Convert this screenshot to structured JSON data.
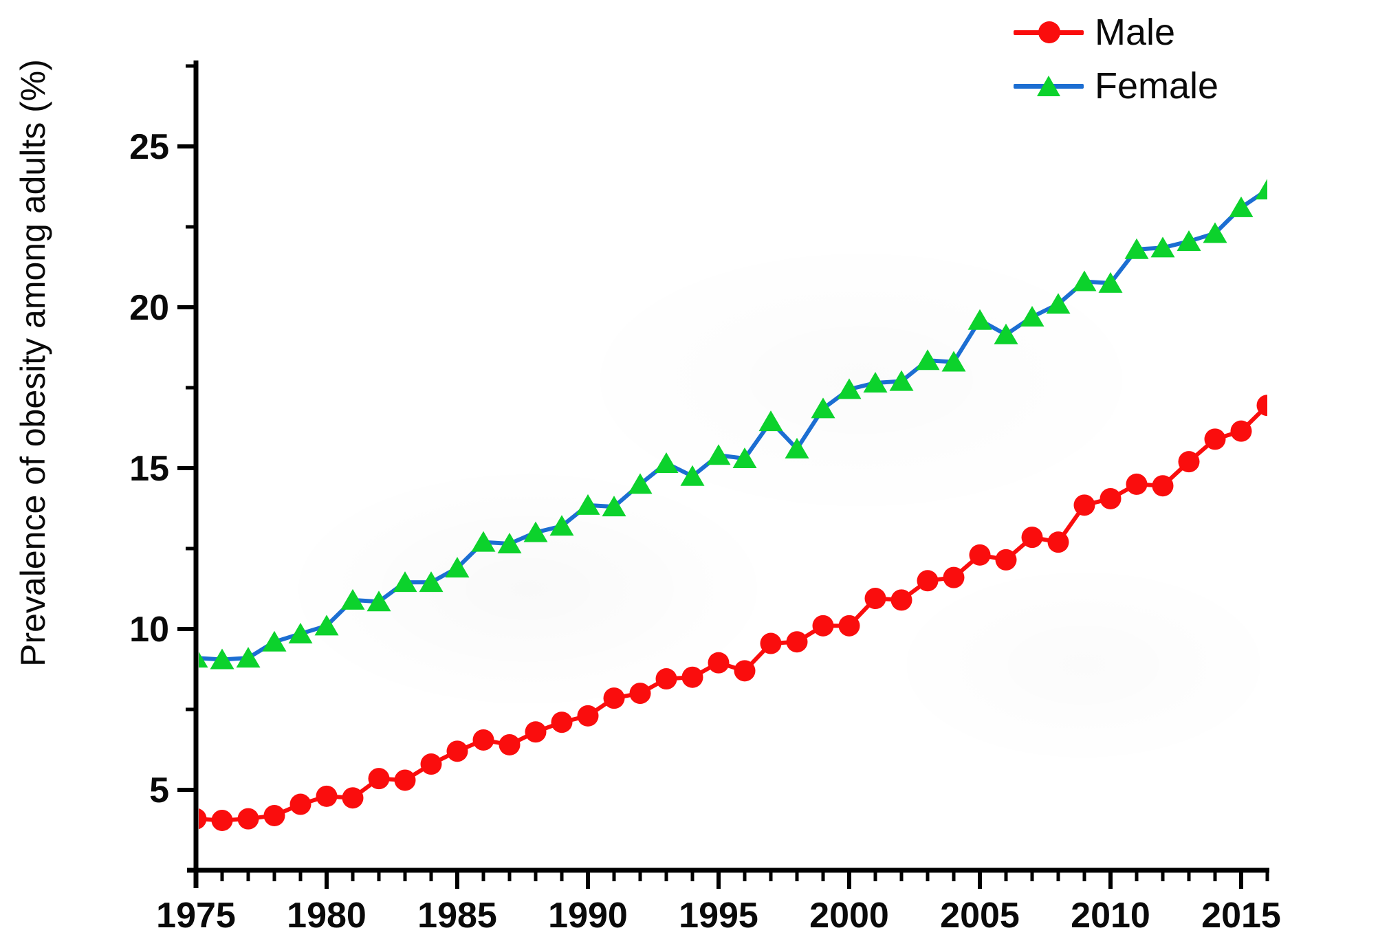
{
  "figure": {
    "y_axis_title": "Prevalence of obesity among adults (%)",
    "background_color": "#ffffff",
    "axis_color": "#000000",
    "text_color": "#0a0a0a"
  },
  "legend": {
    "position": "top-right",
    "items": [
      {
        "label": "Male",
        "line_color": "#fa0d0d",
        "marker": "circle",
        "marker_color": "#fa0d0d"
      },
      {
        "label": "Female",
        "line_color": "#1c6ed2",
        "marker": "triangle",
        "marker_color": "#0cd22c"
      }
    ]
  },
  "chart_data": {
    "type": "line",
    "title": "",
    "xlabel": "",
    "ylabel": "Prevalence of obesity among adults (%)",
    "grid": false,
    "legend_position": "top-right",
    "xlim": [
      1975,
      2016
    ],
    "ylim": [
      2.5,
      27.7
    ],
    "x_ticks_major": [
      1975,
      1980,
      1985,
      1990,
      1995,
      2000,
      2005,
      2010,
      2015
    ],
    "x_minor_tick_every_years": 1,
    "y_ticks_major": [
      5,
      10,
      15,
      20,
      25
    ],
    "y_ticks_minor": [
      7.5,
      12.5,
      17.5,
      22.5,
      27.5
    ],
    "x": [
      1975,
      1976,
      1977,
      1978,
      1979,
      1980,
      1981,
      1982,
      1983,
      1984,
      1985,
      1986,
      1987,
      1988,
      1989,
      1990,
      1991,
      1992,
      1993,
      1994,
      1995,
      1996,
      1997,
      1998,
      1999,
      2000,
      2001,
      2002,
      2003,
      2004,
      2005,
      2006,
      2007,
      2008,
      2009,
      2010,
      2011,
      2012,
      2013,
      2014,
      2015,
      2016
    ],
    "series": [
      {
        "name": "Male",
        "marker": "circle",
        "line_color": "#fa0d0d",
        "marker_color": "#fa0d0d",
        "values": [
          4.1,
          4.05,
          4.1,
          4.2,
          4.55,
          4.8,
          4.75,
          5.35,
          5.3,
          5.8,
          6.2,
          6.55,
          6.4,
          6.8,
          7.1,
          7.3,
          7.85,
          8.0,
          8.45,
          8.5,
          8.95,
          8.7,
          9.55,
          9.6,
          10.1,
          10.1,
          10.95,
          10.9,
          11.5,
          11.6,
          12.3,
          12.15,
          12.85,
          12.7,
          13.85,
          14.05,
          14.5,
          14.45,
          15.2,
          15.9,
          16.15,
          16.95
        ]
      },
      {
        "name": "Female",
        "marker": "triangle",
        "line_color": "#1c6ed2",
        "marker_color": "#0cd22c",
        "values": [
          9.1,
          9.05,
          9.1,
          9.6,
          9.85,
          10.1,
          10.9,
          10.85,
          11.45,
          11.45,
          11.9,
          12.7,
          12.65,
          13.0,
          13.2,
          13.85,
          13.8,
          14.5,
          15.15,
          14.75,
          15.4,
          15.3,
          16.45,
          15.6,
          16.85,
          17.45,
          17.65,
          17.7,
          18.35,
          18.3,
          19.6,
          19.15,
          19.7,
          20.1,
          20.8,
          20.75,
          21.8,
          21.85,
          22.05,
          22.3,
          23.1,
          23.65
        ]
      }
    ]
  }
}
